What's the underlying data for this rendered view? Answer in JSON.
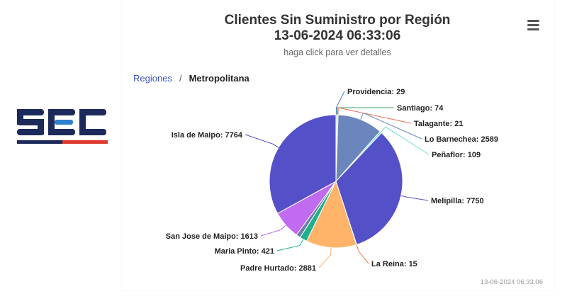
{
  "header": {
    "title_line1": "Clientes Sin Suministro por Región",
    "title_line2": "13-06-2024 06:33:06",
    "subtitle": "haga click para ver detalles"
  },
  "breadcrumb": {
    "root": "Regiones",
    "separator": "/",
    "current": "Metropolitana"
  },
  "logo": {
    "text": "SEC",
    "colors": {
      "navy": "#1b2a5a",
      "blue": "#2f7fd1",
      "red": "#e03a2f"
    }
  },
  "menu": {
    "icon": "hamburger-menu-icon"
  },
  "footer": {
    "timestamp": "13-06-2024 06:33:06"
  },
  "chart_data": {
    "type": "pie",
    "title": "Clientes Sin Suministro por Región",
    "subtitle": "haga click para ver detalles",
    "series": [
      {
        "name": "",
        "data": [
          {
            "label": "Providencia",
            "value": 29,
            "color": "#4f7fbd"
          },
          {
            "label": "Santiago",
            "value": 74,
            "color": "#34a86a"
          },
          {
            "label": "Talagante",
            "value": 21,
            "color": "#ef6f4f"
          },
          {
            "label": "Lo Barnechea",
            "value": 2589,
            "color": "#6a86bd"
          },
          {
            "label": "Peñaflor",
            "value": 109,
            "color": "#6fe0d8"
          },
          {
            "label": "Melipilla",
            "value": 7750,
            "color": "#5450c8"
          },
          {
            "label": "La Reina",
            "value": 15,
            "color": "#f07a3a"
          },
          {
            "label": "Padre Hurtado",
            "value": 2881,
            "color": "#ffb46a"
          },
          {
            "label": "Maria Pinto",
            "value": 421,
            "color": "#1fb08e"
          },
          {
            "label": "",
            "value": 250,
            "color": "#6c7fa8"
          },
          {
            "label": "San Jose de Maipo",
            "value": 1613,
            "color": "#c06bf0"
          },
          {
            "label": "Isla de Maipo",
            "value": 7764,
            "color": "#5450c8"
          }
        ]
      }
    ]
  }
}
